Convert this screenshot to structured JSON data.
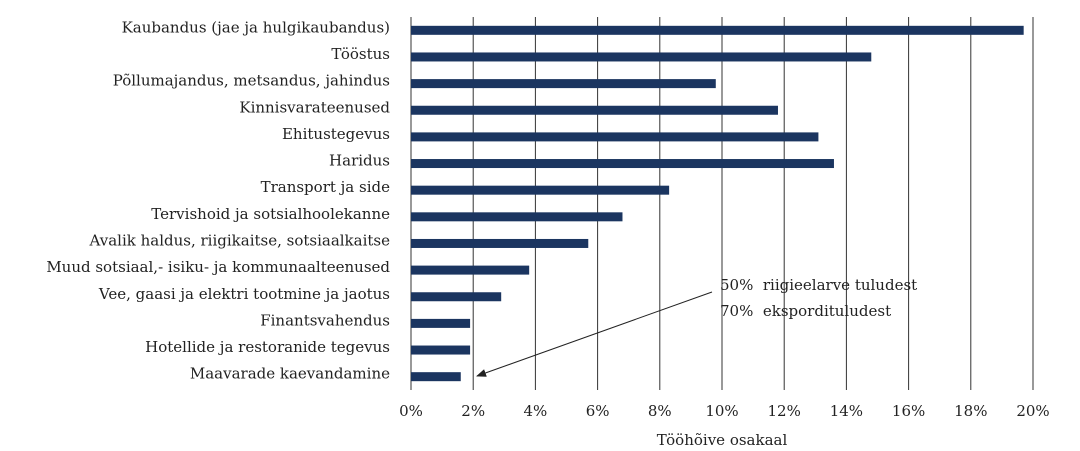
{
  "chart_data": {
    "type": "barh",
    "categories": [
      "Kaubandus (jae ja hulgikaubandus)",
      "Tööstus",
      "Põllumajandus, metsandus, jahindus",
      "Kinnisvarateenused",
      "Ehitustegevus",
      "Haridus",
      "Transport ja side",
      "Tervishoid ja sotsialhoolekanne",
      "Avalik haldus, riigikaitse, sotsiaalkaitse",
      "Muud sotsiaal,- isiku- ja kommunaalteenused",
      "Vee, gaasi ja elektri tootmine ja jaotus",
      "Finantsvahendus",
      "Hotellide ja restoranide tegevus",
      "Maavarade kaevandamine"
    ],
    "values": [
      19.7,
      14.8,
      9.8,
      11.8,
      13.1,
      13.6,
      8.3,
      6.8,
      5.7,
      3.8,
      2.9,
      1.9,
      1.9,
      1.6
    ],
    "color": "#1b3560",
    "xlim": [
      0,
      20
    ],
    "xticks": [
      {
        "value": 0,
        "label": "0%"
      },
      {
        "value": 2,
        "label": "2%"
      },
      {
        "value": 4,
        "label": "4%"
      },
      {
        "value": 6,
        "label": "6%"
      },
      {
        "value": 8,
        "label": "8%"
      },
      {
        "value": 10,
        "label": "10%"
      },
      {
        "value": 12,
        "label": "12%"
      },
      {
        "value": 14,
        "label": "14%"
      },
      {
        "value": 16,
        "label": "16%"
      },
      {
        "value": 18,
        "label": "18%"
      },
      {
        "value": 20,
        "label": "20%"
      }
    ],
    "xlabel": "Tööhõive osakaal",
    "grid": true,
    "annotations": [
      "50%  riigieelarve tuludest",
      "70%  ekspordituludest"
    ]
  }
}
